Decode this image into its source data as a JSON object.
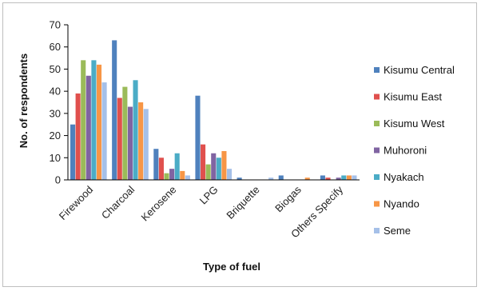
{
  "chart_data": {
    "type": "bar",
    "title": "",
    "xlabel": "Type of fuel",
    "ylabel": "No. of respondents",
    "ylim": [
      0,
      70
    ],
    "yticks": [
      0,
      10,
      20,
      30,
      40,
      50,
      60,
      70
    ],
    "grid": false,
    "legend_position": "right",
    "categories": [
      "Firewood",
      "Charcoal",
      "Kerosene",
      "LPG",
      "Briquette",
      "Biogas",
      "Others Specify"
    ],
    "series": [
      {
        "name": "Kisumu Central",
        "color": "#4f81bd",
        "values": [
          25,
          63,
          14,
          38,
          1,
          2,
          2
        ]
      },
      {
        "name": "Kisumu East",
        "color": "#e0504d",
        "values": [
          39,
          37,
          10,
          16,
          0,
          0,
          1
        ]
      },
      {
        "name": "Kisumu West",
        "color": "#9bbb59",
        "values": [
          54,
          42,
          3,
          7,
          0,
          0,
          0
        ]
      },
      {
        "name": "Muhoroni",
        "color": "#8064a2",
        "values": [
          47,
          33,
          5,
          12,
          0,
          0,
          1
        ]
      },
      {
        "name": "Nyakach",
        "color": "#4bacc6",
        "values": [
          54,
          45,
          12,
          10,
          0,
          0,
          2
        ]
      },
      {
        "name": "Nyando",
        "color": "#f79646",
        "values": [
          52,
          35,
          4,
          13,
          0,
          1,
          2
        ]
      },
      {
        "name": "Seme",
        "color": "#a5c0e8",
        "values": [
          44,
          32,
          2,
          5,
          1,
          0,
          2
        ]
      }
    ]
  }
}
